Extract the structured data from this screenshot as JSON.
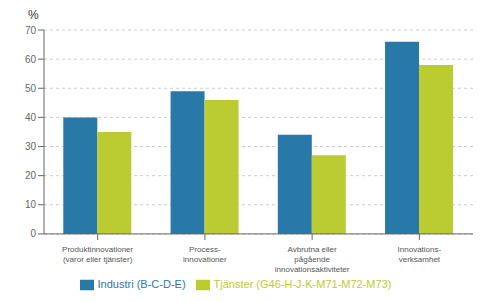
{
  "chart_data": {
    "type": "bar",
    "ylabel": "%",
    "categories": [
      "Produktinnovationer\n(varor eller tjänster)",
      "Process-\ninnovationer",
      "Avbrutna eller\npågående\ninnovationsaktiviteter",
      "Innovations-\nverksamhet"
    ],
    "series": [
      {
        "name": "Industri (B-C-D-E)",
        "color": "#2878A8",
        "values": [
          40,
          49,
          34,
          66
        ]
      },
      {
        "name": "Tjänster (G46-H-J-K-M71-M72-M73)",
        "color": "#BBCC33",
        "values": [
          35,
          46,
          27,
          58
        ]
      }
    ],
    "ylim": [
      0,
      70
    ],
    "yticks": [
      0,
      10,
      20,
      30,
      40,
      50,
      60,
      70
    ],
    "grid": true,
    "legend": "bottom"
  }
}
